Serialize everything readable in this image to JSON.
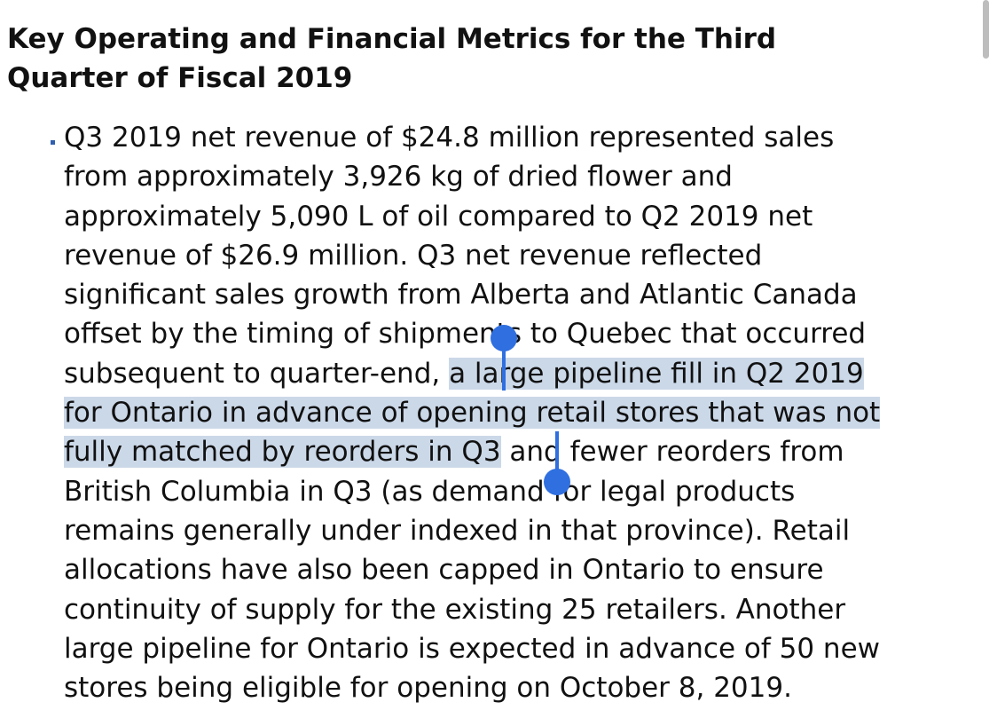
{
  "document": {
    "title_line1": "Key Operating and Financial Metrics for the Third",
    "title_line2": "Quarter of Fiscal 2019",
    "paragraph_lines": [
      "Q3 2019 net revenue of $24.8 million represented sales",
      "from approximately 3,926 kg of dried flower and",
      "approximately 5,090 L of oil compared to Q2 2019 net",
      "revenue of $26.9 million. Q3 net revenue reflected",
      "significant sales growth from Alberta and Atlantic Canada",
      "offset by the timing of shipments to Quebec that occurred"
    ],
    "line7_before": "subsequent to quarter-end, ",
    "line7_selected": "a large pipeline fill in Q2 2019",
    "line8_selected": "for Ontario in advance of opening retail stores that was not",
    "line9_selected": "fully matched by reorders in Q3",
    "line9_after": " and fewer reorders from",
    "paragraph_lines_after": [
      "British Columbia in Q3 (as demand for legal products",
      "remains generally under indexed in that province). Retail",
      "allocations have also been capped in Ontario to ensure",
      "continuity of supply for the existing 25 retailers. Another",
      "large pipeline for Ontario is expected in advance of 50 new",
      "stores being eligible for opening on October 8, 2019."
    ]
  },
  "colors": {
    "selection_highlight": "#cbd8e8",
    "selection_handle": "#2f6fe0",
    "bullet": "#2f5fae",
    "text": "#111111"
  }
}
